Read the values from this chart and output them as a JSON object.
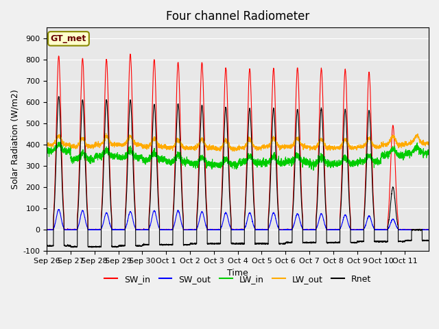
{
  "title": "Four channel Radiometer",
  "xlabel": "Time",
  "ylabel": "Solar Radiation (W/m2)",
  "ylim": [
    -100,
    950
  ],
  "yticks": [
    -100,
    0,
    100,
    200,
    300,
    400,
    500,
    600,
    700,
    800,
    900
  ],
  "x_tick_labels": [
    "Sep 26",
    "Sep 27",
    "Sep 28",
    "Sep 29",
    "Sep 30",
    "Oct 1",
    "Oct 2",
    "Oct 3",
    "Oct 4",
    "Oct 5",
    "Oct 6",
    "Oct 7",
    "Oct 8",
    "Oct 9",
    "Oct 10",
    "Oct 11"
  ],
  "colors": {
    "SW_in": "#ff0000",
    "SW_out": "#0000ff",
    "LW_in": "#00cc00",
    "LW_out": "#ffaa00",
    "Rnet": "#000000"
  },
  "legend_label": "GT_met",
  "legend_bg": "#ffffcc",
  "legend_edge": "#888800",
  "plot_bg": "#e8e8e8",
  "n_days": 16,
  "points_per_day": 240,
  "SW_in_peaks": [
    815,
    805,
    800,
    825,
    800,
    785,
    785,
    760,
    755,
    757,
    760,
    757,
    753,
    740,
    490,
    0
  ],
  "SW_out_peaks": [
    95,
    90,
    80,
    85,
    90,
    90,
    85,
    80,
    80,
    80,
    75,
    75,
    70,
    65,
    50,
    0
  ],
  "LW_in_base": [
    370,
    330,
    345,
    340,
    330,
    320,
    310,
    305,
    315,
    315,
    320,
    310,
    310,
    320,
    350,
    360
  ],
  "LW_out_base": [
    400,
    390,
    400,
    400,
    390,
    385,
    385,
    380,
    385,
    390,
    390,
    385,
    385,
    390,
    400,
    405
  ],
  "Rnet_peaks": [
    625,
    610,
    610,
    610,
    590,
    590,
    585,
    575,
    570,
    570,
    565,
    570,
    565,
    560,
    200,
    0
  ],
  "Rnet_night": [
    -75,
    -80,
    -80,
    -75,
    -70,
    -70,
    -65,
    -65,
    -65,
    -65,
    -60,
    -60,
    -60,
    -55,
    -55,
    -50
  ]
}
